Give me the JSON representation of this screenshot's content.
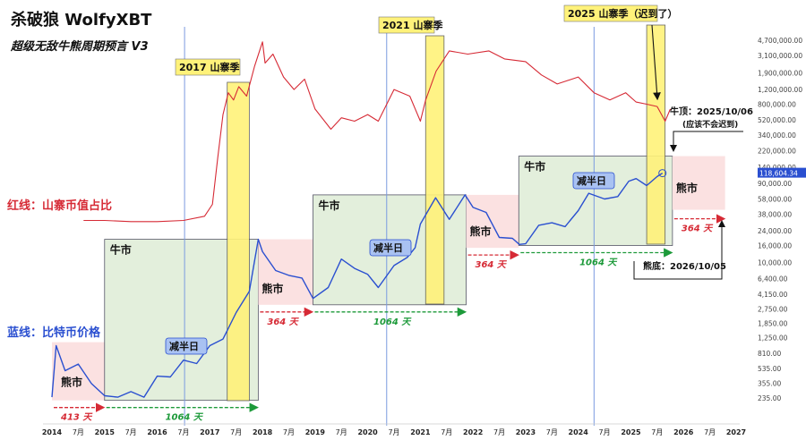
{
  "header": {
    "title": "杀破狼 WolfyXBT",
    "subtitle": "超级无敌牛熊周期预言 V3"
  },
  "colors": {
    "btc": "#2a4fd0",
    "alt": "#d62a35",
    "bull_fill": "#e3efdc",
    "bear_fill": "#fbe1e1",
    "altseason": "#fff27a",
    "halving_line": "#7a9be0",
    "green_arrow": "#1d9a3a",
    "red_arrow": "#d62a35"
  },
  "chart_data": {
    "type": "line",
    "title": "超级无敌牛熊周期预言 V3",
    "x_axis": {
      "start": "2014-01",
      "end": "2027-01",
      "tick_labels": [
        "2014",
        "7月",
        "2015",
        "7月",
        "2016",
        "7月",
        "2017",
        "7月",
        "2018",
        "7月",
        "2019",
        "7月",
        "2020",
        "7月",
        "2021",
        "7月",
        "2022",
        "7月",
        "2023",
        "7月",
        "2024",
        "7月",
        "2025",
        "7月",
        "2026",
        "7月",
        "2027"
      ]
    },
    "y_axis": {
      "scale": "log",
      "tick_labels": [
        "4,700,000.00",
        "3,100,000.00",
        "1,900,000.00",
        "1,200,000.00",
        "800,000.00",
        "520,000.00",
        "340,000.00",
        "220,000.00",
        "140,000.00",
        "90,000.00",
        "58,000.00",
        "38,000.00",
        "24,000.00",
        "16,000.00",
        "10,000.00",
        "6,400.00",
        "4,150.00",
        "2,750.00",
        "1,850.00",
        "1,250.00",
        "810.00",
        "535.00",
        "355.00",
        "235.00"
      ],
      "last_price_label": "118,604.34"
    },
    "series": [
      {
        "name": "蓝线：比特币价格",
        "color": "#2a4fd0",
        "x": [
          2014.0,
          2014.08,
          2014.25,
          2014.5,
          2014.75,
          2015.0,
          2015.25,
          2015.5,
          2015.75,
          2016.0,
          2016.25,
          2016.5,
          2016.75,
          2017.0,
          2017.25,
          2017.5,
          2017.75,
          2017.92,
          2018.0,
          2018.25,
          2018.5,
          2018.75,
          2018.96,
          2019.25,
          2019.5,
          2019.75,
          2020.0,
          2020.2,
          2020.5,
          2020.75,
          2020.9,
          2021.0,
          2021.29,
          2021.55,
          2021.85,
          2022.0,
          2022.25,
          2022.5,
          2022.75,
          2022.88,
          2023.0,
          2023.25,
          2023.5,
          2023.75,
          2024.0,
          2024.2,
          2024.5,
          2024.75,
          2024.96,
          2025.1,
          2025.3,
          2025.5,
          2025.6
        ],
        "y": [
          240,
          1000,
          500,
          600,
          350,
          250,
          240,
          280,
          240,
          430,
          420,
          670,
          610,
          1000,
          1200,
          2500,
          4500,
          19000,
          13500,
          8000,
          7000,
          6500,
          3700,
          5000,
          11000,
          8500,
          7200,
          5000,
          9200,
          11500,
          15000,
          29000,
          60000,
          33000,
          65000,
          46000,
          40000,
          20000,
          19500,
          16500,
          16800,
          28000,
          30000,
          27000,
          42000,
          68000,
          58000,
          62000,
          95000,
          102000,
          84000,
          108000,
          118604
        ]
      },
      {
        "name": "红线：山寨币值占比",
        "color": "#d62a35",
        "x": [
          2014.6,
          2015.0,
          2015.5,
          2016.0,
          2016.5,
          2016.9,
          2017.05,
          2017.15,
          2017.25,
          2017.35,
          2017.45,
          2017.55,
          2017.7,
          2017.85,
          2018.0,
          2018.05,
          2018.2,
          2018.4,
          2018.6,
          2018.8,
          2019.0,
          2019.3,
          2019.5,
          2019.75,
          2020.0,
          2020.2,
          2020.5,
          2020.8,
          2021.0,
          2021.1,
          2021.3,
          2021.55,
          2021.9,
          2022.3,
          2022.6,
          2023.0,
          2023.3,
          2023.6,
          2024.0,
          2024.3,
          2024.6,
          2024.9,
          2025.1,
          2025.3,
          2025.5,
          2025.65,
          2025.75
        ],
        "y": [
          32000,
          32000,
          31000,
          31000,
          32000,
          36000,
          50000,
          180000,
          600000,
          1100000,
          900000,
          1300000,
          1000000,
          2300000,
          4500000,
          2500000,
          3200000,
          1700000,
          1200000,
          1600000,
          700000,
          400000,
          550000,
          500000,
          600000,
          500000,
          1200000,
          1000000,
          500000,
          900000,
          2000000,
          3500000,
          3200000,
          3500000,
          2800000,
          2600000,
          1800000,
          1400000,
          1700000,
          1100000,
          900000,
          1100000,
          850000,
          800000,
          750000,
          500000,
          700000
        ]
      }
    ],
    "halvings": [
      "2016-07",
      "2020-05",
      "2024-04"
    ],
    "phases": [
      {
        "kind": "bear",
        "label": "熊市",
        "duration_label": "413 天",
        "x_start": 2014.0,
        "x_end": 2015.0,
        "y_low": 220,
        "y_high": 1100
      },
      {
        "kind": "bull",
        "label": "牛市",
        "duration_label": "1064 天",
        "x_start": 2015.0,
        "x_end": 2017.92,
        "y_low": 220,
        "y_high": 19000
      },
      {
        "kind": "bear",
        "label": "熊市",
        "duration_label": "364 天",
        "x_start": 2017.92,
        "x_end": 2018.96,
        "y_low": 3100,
        "y_high": 19000
      },
      {
        "kind": "bull",
        "label": "牛市",
        "duration_label": "1064 天",
        "x_start": 2018.96,
        "x_end": 2021.87,
        "y_low": 3100,
        "y_high": 65000
      },
      {
        "kind": "bear",
        "label": "熊市",
        "duration_label": "364 天",
        "x_start": 2021.87,
        "x_end": 2022.87,
        "y_low": 15000,
        "y_high": 65000
      },
      {
        "kind": "bull",
        "label": "牛市",
        "duration_label": "1064 天",
        "x_start": 2022.87,
        "x_end": 2025.79,
        "y_low": 16000,
        "y_high": 190000
      },
      {
        "kind": "bear",
        "label": "熊市",
        "duration_label": "364 天",
        "x_start": 2025.79,
        "x_end": 2026.79,
        "y_low": 43000,
        "y_high": 190000
      }
    ],
    "altseasons": [
      {
        "label": "2017 山寨季",
        "x_start": 2017.33,
        "x_end": 2017.75
      },
      {
        "label": "2021 山寨季",
        "x_start": 2021.1,
        "x_end": 2021.45
      },
      {
        "label": "2025 山寨季（迟到了）",
        "x_start": 2025.3,
        "x_end": 2025.65
      }
    ],
    "annotations": {
      "halving": "减半日",
      "top": "牛顶：2025/10/06",
      "top_note": "(应该不会迟到)",
      "bottom": "熊底：2026/10/05"
    },
    "legend": {
      "alt": "红线：山寨币值占比",
      "btc": "蓝线：比特币价格"
    }
  }
}
